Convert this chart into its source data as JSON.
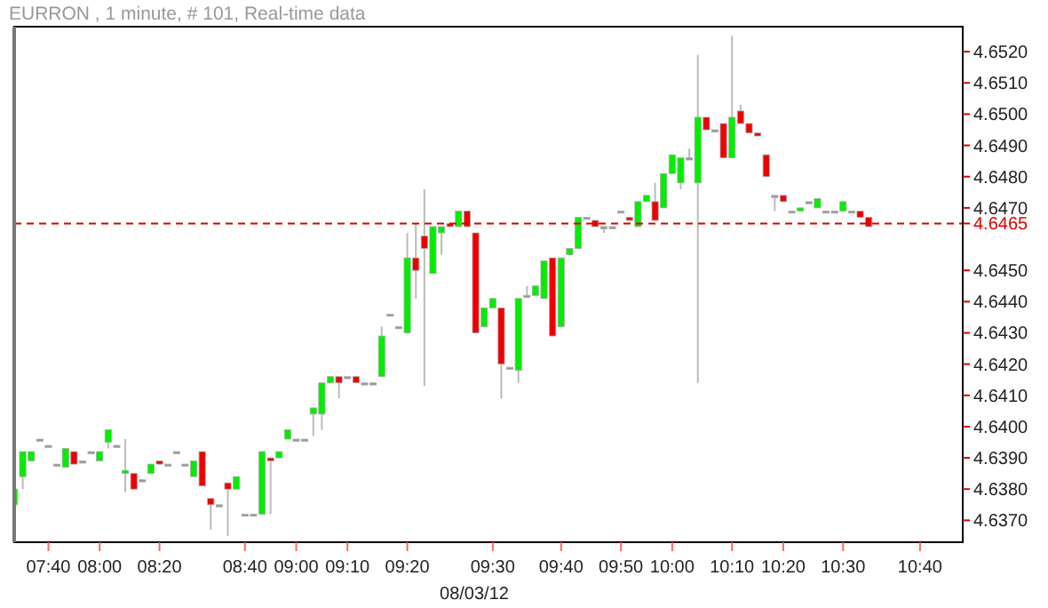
{
  "chart_data": {
    "type": "candlestick",
    "title": "EURRON , 1 minute, # 101, Real-time data",
    "xlabel": "08/03/12",
    "categories": [
      null,
      null,
      null,
      null,
      "07:40",
      null,
      null,
      null,
      null,
      null,
      "08:00",
      null,
      null,
      null,
      null,
      null,
      null,
      "08:20",
      null,
      null,
      null,
      null,
      null,
      null,
      null,
      null,
      null,
      "08:40",
      null,
      null,
      null,
      null,
      null,
      "09:00",
      null,
      null,
      null,
      null,
      null,
      "09:10",
      null,
      null,
      null,
      null,
      null,
      null,
      "09:20",
      null,
      null,
      null,
      null,
      null,
      null,
      null,
      null,
      null,
      "09:30",
      null,
      null,
      null,
      null,
      null,
      null,
      null,
      "09:40",
      null,
      null,
      null,
      null,
      null,
      null,
      "09:50",
      null,
      null,
      null,
      null,
      null,
      "10:00",
      null,
      null,
      null,
      null,
      null,
      null,
      "10:10",
      null,
      null,
      null,
      null,
      null,
      "10:20",
      null,
      null,
      null,
      null,
      null,
      null,
      "10:30",
      null,
      null,
      null,
      null,
      null,
      null,
      null,
      null,
      "10:40",
      null,
      null,
      null,
      null,
      null
    ],
    "ohlc": [
      [
        4.6375,
        4.638,
        4.6369,
        4.638
      ],
      [
        4.6384,
        4.6392,
        4.638,
        4.6392
      ],
      [
        4.6389,
        4.6392,
        4.6389,
        4.6392
      ],
      [
        4.6396,
        4.6396,
        4.6396,
        4.6396
      ],
      [
        4.6394,
        4.6394,
        4.6394,
        4.6394
      ],
      [
        4.6388,
        4.6388,
        4.6388,
        4.6388
      ],
      [
        4.6387,
        4.6393,
        4.6387,
        4.6393
      ],
      [
        4.6392,
        4.6392,
        4.6388,
        4.6388
      ],
      [
        4.6389,
        4.6389,
        4.6389,
        4.6389
      ],
      [
        4.6392,
        4.6392,
        4.6392,
        4.6392
      ],
      [
        4.6389,
        4.6392,
        4.6389,
        4.6392
      ],
      [
        4.6395,
        4.6399,
        4.6393,
        4.6399
      ],
      [
        4.6394,
        4.6394,
        4.6394,
        4.6394
      ],
      [
        4.6385,
        4.6396,
        4.6379,
        4.6386
      ],
      [
        4.6385,
        4.6385,
        4.638,
        4.638
      ],
      [
        4.6383,
        4.6383,
        4.6383,
        4.6383
      ],
      [
        4.6385,
        4.6388,
        4.6385,
        4.6388
      ],
      [
        4.6389,
        4.6389,
        4.6388,
        4.6388
      ],
      [
        4.6388,
        4.6388,
        4.6388,
        4.6388
      ],
      [
        4.6392,
        4.6392,
        4.6392,
        4.6392
      ],
      [
        4.6388,
        4.6388,
        4.6388,
        4.6388
      ],
      [
        4.6384,
        4.6389,
        4.6384,
        4.6389
      ],
      [
        4.6392,
        4.6392,
        4.6381,
        4.6381
      ],
      [
        4.6377,
        4.6377,
        4.6367,
        4.6375
      ],
      [
        4.6375,
        4.6375,
        4.6375,
        4.6375
      ],
      [
        4.6382,
        4.6382,
        4.6365,
        4.638
      ],
      [
        4.638,
        4.6384,
        4.638,
        4.6384
      ],
      [
        4.6372,
        4.6372,
        4.6372,
        4.6372
      ],
      [
        4.6372,
        4.6372,
        4.6372,
        4.6372
      ],
      [
        4.6372,
        4.6392,
        4.6372,
        4.6392
      ],
      [
        4.639,
        4.639,
        4.6372,
        4.6389
      ],
      [
        4.639,
        4.6392,
        4.639,
        4.6392
      ],
      [
        4.6396,
        4.6399,
        4.6396,
        4.6399
      ],
      [
        4.6396,
        4.6396,
        4.6396,
        4.6396
      ],
      [
        4.6396,
        4.6396,
        4.6396,
        4.6396
      ],
      [
        4.6404,
        4.6406,
        4.6397,
        4.6406
      ],
      [
        4.6404,
        4.6414,
        4.6399,
        4.6414
      ],
      [
        4.6414,
        4.6416,
        4.6414,
        4.6416
      ],
      [
        4.6416,
        4.6416,
        4.6409,
        4.6414
      ],
      [
        4.6416,
        4.6416,
        4.6416,
        4.6416
      ],
      [
        4.6416,
        4.6416,
        4.6414,
        4.6414
      ],
      [
        4.6414,
        4.6414,
        4.6414,
        4.6414
      ],
      [
        4.6414,
        4.6414,
        4.6414,
        4.6414
      ],
      [
        4.6416,
        4.6432,
        4.6416,
        4.6429
      ],
      [
        4.6436,
        4.6436,
        4.6436,
        4.6436
      ],
      [
        4.6432,
        4.6432,
        4.6432,
        4.6432
      ],
      [
        4.643,
        4.6462,
        4.643,
        4.6454
      ],
      [
        4.6454,
        4.6465,
        4.6441,
        4.645
      ],
      [
        4.6461,
        4.6476,
        4.6413,
        4.6457
      ],
      [
        4.6449,
        4.6464,
        4.6449,
        4.6464
      ],
      [
        4.6462,
        4.6464,
        4.6455,
        4.6464
      ],
      [
        4.6465,
        4.6465,
        4.6464,
        4.6464
      ],
      [
        4.6464,
        4.6469,
        4.6464,
        4.6469
      ],
      [
        4.6469,
        4.6469,
        4.6464,
        4.6464
      ],
      [
        4.6462,
        4.6462,
        4.643,
        4.643
      ],
      [
        4.6432,
        4.6438,
        4.6432,
        4.6438
      ],
      [
        4.6438,
        4.6441,
        4.6438,
        4.6441
      ],
      [
        4.6438,
        4.6438,
        4.6409,
        4.642
      ],
      [
        4.6419,
        4.6419,
        4.6419,
        4.6419
      ],
      [
        4.6418,
        4.6441,
        4.6414,
        4.6441
      ],
      [
        4.6442,
        4.6445,
        4.6442,
        4.6442
      ],
      [
        4.6442,
        4.6445,
        4.6442,
        4.6445
      ],
      [
        4.6441,
        4.6453,
        4.6441,
        4.6453
      ],
      [
        4.6454,
        4.6454,
        4.6429,
        4.6429
      ],
      [
        4.6432,
        4.6454,
        4.6432,
        4.6454
      ],
      [
        4.6455,
        4.6457,
        4.6455,
        4.6457
      ],
      [
        4.6457,
        4.6467,
        4.6457,
        4.6467
      ],
      [
        4.6467,
        4.6467,
        4.6467,
        4.6467
      ],
      [
        4.6466,
        4.6466,
        4.6464,
        4.6464
      ],
      [
        4.6464,
        4.6464,
        4.6462,
        4.6464
      ],
      [
        4.6464,
        4.6464,
        4.6464,
        4.6464
      ],
      [
        4.6469,
        4.6469,
        4.6469,
        4.6469
      ],
      [
        4.6467,
        4.6467,
        4.6466,
        4.6466
      ],
      [
        4.6464,
        4.6472,
        4.6464,
        4.6472
      ],
      [
        4.6472,
        4.6474,
        4.6472,
        4.6474
      ],
      [
        4.6472,
        4.6478,
        4.6466,
        4.6466
      ],
      [
        4.647,
        4.6481,
        4.647,
        4.6481
      ],
      [
        4.6481,
        4.6487,
        4.6481,
        4.6487
      ],
      [
        4.6478,
        4.6486,
        4.6476,
        4.6486
      ],
      [
        4.6486,
        4.6489,
        4.6486,
        4.6486
      ],
      [
        4.6478,
        4.6519,
        4.6414,
        4.6499
      ],
      [
        4.6499,
        4.6499,
        4.6495,
        4.6495
      ],
      [
        4.6495,
        4.6495,
        4.6495,
        4.6495
      ],
      [
        4.6497,
        4.6497,
        4.6486,
        4.6486
      ],
      [
        4.6486,
        4.6525,
        4.6486,
        4.6499
      ],
      [
        4.6501,
        4.6503,
        4.6497,
        4.6497
      ],
      [
        4.6497,
        4.6497,
        4.6494,
        4.6494
      ],
      [
        4.6494,
        4.6494,
        4.6493,
        4.6493
      ],
      [
        4.6487,
        4.6487,
        4.648,
        4.648
      ],
      [
        4.6474,
        4.6474,
        4.6469,
        4.6474
      ],
      [
        4.6474,
        4.6474,
        4.6472,
        4.6472
      ],
      [
        4.6469,
        4.6469,
        4.6469,
        4.6469
      ],
      [
        4.6469,
        4.647,
        4.6469,
        4.647
      ],
      [
        4.6472,
        4.6472,
        4.6472,
        4.6472
      ],
      [
        4.647,
        4.6473,
        4.647,
        4.6473
      ],
      [
        4.6469,
        4.6469,
        4.6469,
        4.6469
      ],
      [
        4.6469,
        4.6469,
        4.6469,
        4.6469
      ],
      [
        4.6469,
        4.6472,
        4.6469,
        4.6472
      ],
      [
        4.6469,
        4.6469,
        4.6469,
        4.6469
      ],
      [
        4.6469,
        4.6469,
        4.6467,
        4.6467
      ],
      [
        4.6467,
        4.6467,
        4.6464,
        4.6464
      ],
      null,
      null,
      null,
      null,
      null,
      null,
      null,
      null,
      null,
      null,
      null
    ],
    "colors": [
      "#00ee00",
      "#00ee00",
      "#00ee00",
      "#999999",
      "#999999",
      "#999999",
      "#00ee00",
      "#ee0000",
      "#999999",
      "#999999",
      "#00ee00",
      "#00ee00",
      "#999999",
      "#00ee00",
      "#ee0000",
      "#999999",
      "#00ee00",
      "#ee0000",
      "#999999",
      "#999999",
      "#999999",
      "#00ee00",
      "#ee0000",
      "#ee0000",
      "#999999",
      "#ee0000",
      "#00ee00",
      "#999999",
      "#999999",
      "#00ee00",
      "#ee0000",
      "#00ee00",
      "#00ee00",
      "#999999",
      "#999999",
      "#00ee00",
      "#00ee00",
      "#00ee00",
      "#ee0000",
      "#999999",
      "#ee0000",
      "#999999",
      "#999999",
      "#00ee00",
      "#999999",
      "#999999",
      "#00ee00",
      "#ee0000",
      "#ee0000",
      "#00ee00",
      "#00ee00",
      "#ee0000",
      "#00ee00",
      "#ee0000",
      "#ee0000",
      "#00ee00",
      "#00ee00",
      "#ee0000",
      "#999999",
      "#00ee00",
      "#999999",
      "#00ee00",
      "#00ee00",
      "#ee0000",
      "#00ee00",
      "#00ee00",
      "#00ee00",
      "#999999",
      "#ee0000",
      "#999999",
      "#999999",
      "#999999",
      "#ee0000",
      "#00ee00",
      "#00ee00",
      "#ee0000",
      "#00ee00",
      "#00ee00",
      "#00ee00",
      "#999999",
      "#00ee00",
      "#ee0000",
      "#999999",
      "#ee0000",
      "#00ee00",
      "#ee0000",
      "#ee0000",
      "#ee0000",
      "#ee0000",
      "#999999",
      "#ee0000",
      "#999999",
      "#00ee00",
      "#999999",
      "#00ee00",
      "#999999",
      "#999999",
      "#00ee00",
      "#999999",
      "#ee0000",
      "#ee0000",
      null,
      null,
      null,
      null,
      null,
      null,
      null,
      null,
      null,
      null,
      null
    ],
    "ylim": [
      4.6363,
      4.6528
    ],
    "yticks": [
      {
        "value": 4.637,
        "label": "4.6370"
      },
      {
        "value": 4.638,
        "label": "4.6380"
      },
      {
        "value": 4.639,
        "label": "4.6390"
      },
      {
        "value": 4.64,
        "label": "4.6400"
      },
      {
        "value": 4.641,
        "label": "4.6410"
      },
      {
        "value": 4.642,
        "label": "4.6420"
      },
      {
        "value": 4.643,
        "label": "4.6430"
      },
      {
        "value": 4.644,
        "label": "4.6440"
      },
      {
        "value": 4.645,
        "label": "4.6450"
      },
      {
        "value": 4.647,
        "label": "4.6470"
      },
      {
        "value": 4.648,
        "label": "4.6480"
      },
      {
        "value": 4.649,
        "label": "4.6490"
      },
      {
        "value": 4.65,
        "label": "4.6500"
      },
      {
        "value": 4.651,
        "label": "4.6510"
      },
      {
        "value": 4.652,
        "label": "4.6520"
      }
    ],
    "ref_lines": [
      {
        "axis": "y",
        "value": 4.6465,
        "label": "4.6465",
        "color": "#dd0000",
        "line_style": "dashed"
      }
    ]
  }
}
